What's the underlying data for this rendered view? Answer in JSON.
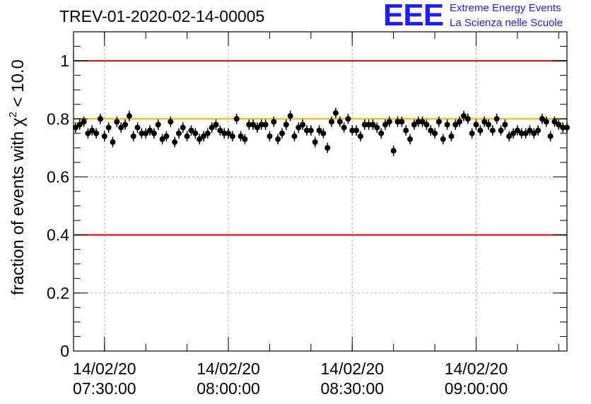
{
  "header": {
    "title": "TREV-01-2020-02-14-00005",
    "logo_letters": "EEE",
    "logo_line1": "Extreme Energy Events",
    "logo_line2": "La Scienza nelle Scuole",
    "logo_color": "#1e1eff"
  },
  "chart_data": {
    "type": "scatter",
    "title": "TREV-01-2020-02-14-00005",
    "ylabel_prefix": "fraction of events with ",
    "ylabel_symbol": "χ",
    "ylabel_sup": "2",
    "ylabel_suffix": " < 10.0",
    "xlabel": "",
    "ylim": [
      0,
      1.1
    ],
    "xlim": [
      "14/02/20 07:22:30",
      "14/02/20 09:22:00"
    ],
    "y_ticks": [
      "0",
      "0.2",
      "0.4",
      "0.6",
      "0.8",
      "1"
    ],
    "y_tick_values": [
      0,
      0.2,
      0.4,
      0.6,
      0.8,
      1.0
    ],
    "x_ticks": [
      {
        "date": "14/02/20",
        "time": "07:30:00",
        "minutes": 7.5
      },
      {
        "date": "14/02/20",
        "time": "08:00:00",
        "minutes": 37.5
      },
      {
        "date": "14/02/20",
        "time": "08:30:00",
        "minutes": 67.5
      },
      {
        "date": "14/02/20",
        "time": "09:00:00",
        "minutes": 97.5
      }
    ],
    "x_start_minutes": 0,
    "x_end_minutes": 119.5,
    "grid": true,
    "reference_lines": [
      {
        "y": 1.0,
        "color": "#e00000"
      },
      {
        "y": 0.4,
        "color": "#e00000"
      },
      {
        "y": 0.8,
        "color": "#ffb000"
      }
    ],
    "error_bar": 0.018,
    "series": [
      {
        "marker_color": "#000000",
        "x_step_minutes": 1,
        "x_first_minutes": 0.5,
        "values": [
          0.77,
          0.78,
          0.79,
          0.75,
          0.76,
          0.75,
          0.8,
          0.74,
          0.77,
          0.72,
          0.79,
          0.77,
          0.78,
          0.81,
          0.74,
          0.77,
          0.75,
          0.75,
          0.76,
          0.75,
          0.78,
          0.73,
          0.74,
          0.79,
          0.72,
          0.75,
          0.77,
          0.74,
          0.76,
          0.75,
          0.73,
          0.74,
          0.75,
          0.77,
          0.78,
          0.76,
          0.75,
          0.75,
          0.74,
          0.8,
          0.74,
          0.73,
          0.78,
          0.78,
          0.77,
          0.78,
          0.78,
          0.74,
          0.79,
          0.73,
          0.75,
          0.78,
          0.81,
          0.74,
          0.77,
          0.78,
          0.76,
          0.76,
          0.72,
          0.76,
          0.75,
          0.7,
          0.79,
          0.82,
          0.79,
          0.77,
          0.8,
          0.76,
          0.76,
          0.74,
          0.78,
          0.78,
          0.78,
          0.77,
          0.75,
          0.78,
          0.79,
          0.69,
          0.79,
          0.79,
          0.76,
          0.73,
          0.78,
          0.79,
          0.79,
          0.78,
          0.76,
          0.75,
          0.79,
          0.73,
          0.78,
          0.74,
          0.78,
          0.79,
          0.81,
          0.8,
          0.75,
          0.78,
          0.76,
          0.79,
          0.78,
          0.76,
          0.8,
          0.76,
          0.78,
          0.74,
          0.75,
          0.76,
          0.75,
          0.75,
          0.76,
          0.75,
          0.76,
          0.8,
          0.79,
          0.74,
          0.79,
          0.78,
          0.77,
          0.77,
          0.75
        ]
      }
    ]
  }
}
